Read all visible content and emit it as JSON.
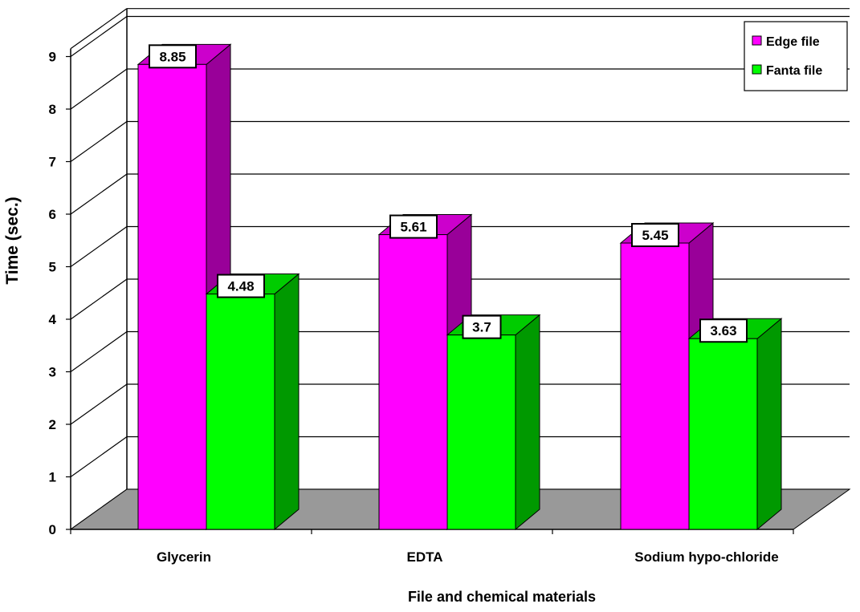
{
  "chart_data": {
    "type": "bar",
    "categories": [
      "Glycerin",
      "EDTA",
      "Sodium hypo-chloride"
    ],
    "series": [
      {
        "name": "Edge file",
        "values": [
          8.85,
          5.61,
          5.45
        ],
        "color": "#ff00ff",
        "side_color": "#990099",
        "top_color": "#cc00cc"
      },
      {
        "name": "Fanta file",
        "values": [
          4.48,
          3.7,
          3.63
        ],
        "color": "#00ff00",
        "side_color": "#009900",
        "top_color": "#00cc00"
      }
    ],
    "title": "",
    "xlabel": "File and chemical materials",
    "ylabel": "Time (sec.)",
    "ylim": [
      0,
      9
    ],
    "yticks": [
      "0",
      "1",
      "2",
      "3",
      "4",
      "5",
      "6",
      "7",
      "8",
      "9"
    ],
    "data_labels": [
      [
        "8.85",
        "5.61",
        "5.45"
      ],
      [
        "4.48",
        "3.7",
        "3.63"
      ]
    ],
    "grid": true,
    "legend_position": "top-right",
    "floor_color": "#999999"
  }
}
